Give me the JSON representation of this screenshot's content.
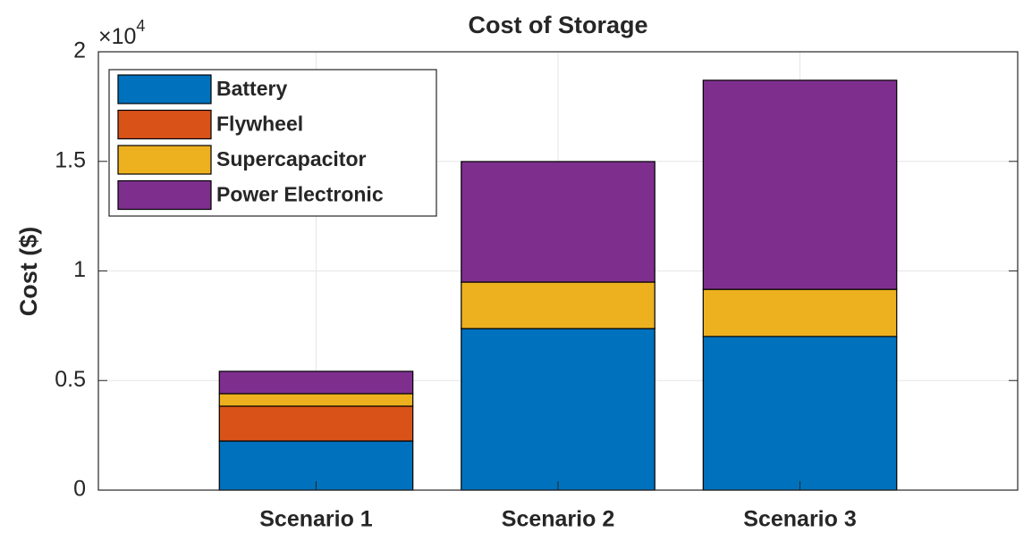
{
  "chart_data": {
    "type": "stacked_bar",
    "title": "Cost of Storage",
    "ylabel": "Cost ($)",
    "y_multiplier": "×10",
    "y_multiplier_exponent": "4",
    "categories": [
      "Scenario 1",
      "Scenario 2",
      "Scenario 3"
    ],
    "series": [
      {
        "name": "Battery",
        "color": "#0072bd",
        "values": [
          0.224,
          0.737,
          0.701
        ]
      },
      {
        "name": "Flywheel",
        "color": "#d95319",
        "values": [
          0.159,
          0,
          0
        ]
      },
      {
        "name": "Supercapacitor",
        "color": "#edb120",
        "values": [
          0.057,
          0.212,
          0.215
        ]
      },
      {
        "name": "Power Electronic",
        "color": "#7e2f8e",
        "values": [
          0.102,
          0.55,
          0.954
        ]
      }
    ],
    "ylim": [
      0,
      2
    ],
    "yticks": [
      0,
      0.5,
      1,
      1.5,
      2
    ],
    "grid": true,
    "legend_position": "top-left"
  }
}
